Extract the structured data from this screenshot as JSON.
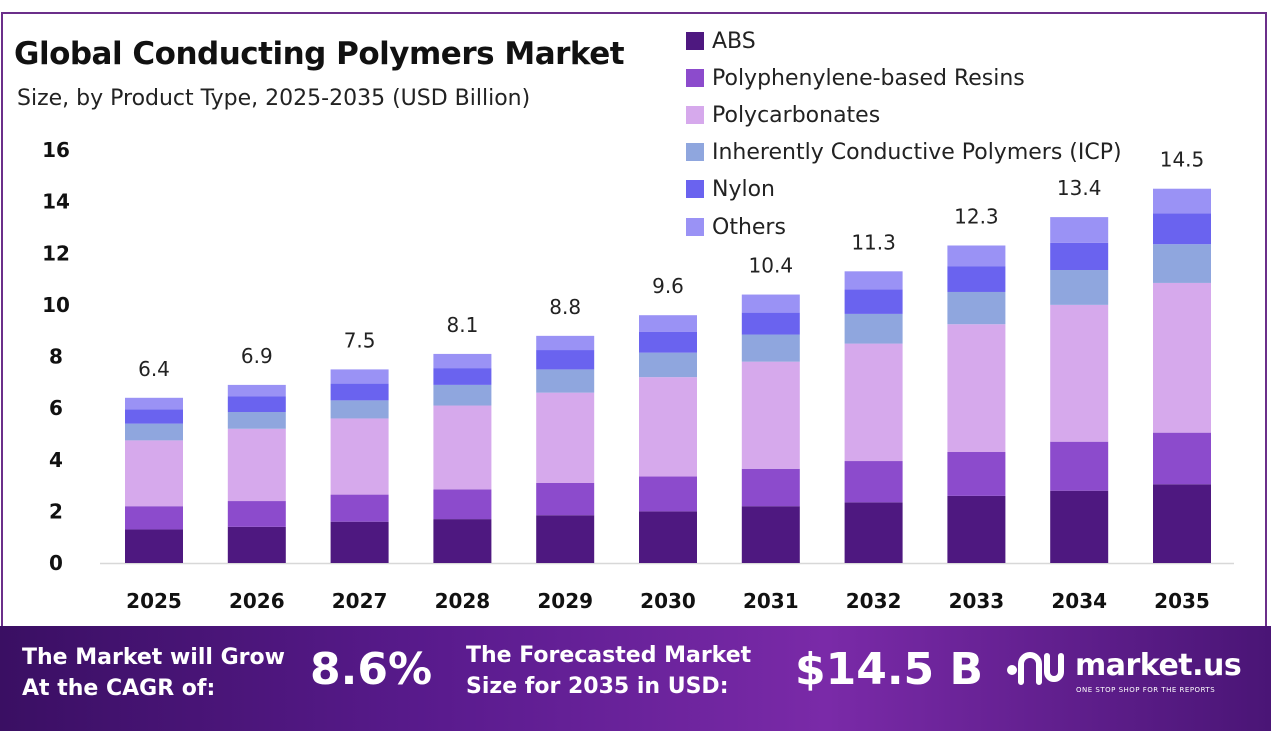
{
  "title": "Global Conducting Polymers Market",
  "subtitle": "Size, by Product Type, 2025-2035 (USD Billion)",
  "legend": [
    {
      "label": "ABS",
      "color": "#4e1880"
    },
    {
      "label": "Polyphenylene-based Resins",
      "color": "#8c4bcc"
    },
    {
      "label": "Polycarbonates",
      "color": "#d6a9ec"
    },
    {
      "label": "Inherently Conductive Polymers (ICP)",
      "color": "#8fa6de"
    },
    {
      "label": "Nylon",
      "color": "#6a63ef"
    },
    {
      "label": "Others",
      "color": "#9a92f5"
    }
  ],
  "chart_data": {
    "type": "bar",
    "stacked": true,
    "categories": [
      "2025",
      "2026",
      "2027",
      "2028",
      "2029",
      "2030",
      "2031",
      "2032",
      "2033",
      "2034",
      "2035"
    ],
    "totals": [
      "6.4",
      "6.9",
      "7.5",
      "8.1",
      "8.8",
      "9.6",
      "10.4",
      "11.3",
      "12.3",
      "13.4",
      "14.5"
    ],
    "series": [
      {
        "name": "ABS",
        "values": [
          1.3,
          1.4,
          1.6,
          1.7,
          1.85,
          2.0,
          2.2,
          2.35,
          2.6,
          2.8,
          3.05
        ]
      },
      {
        "name": "Polyphenylene-based Resins",
        "values": [
          0.9,
          1.0,
          1.05,
          1.15,
          1.25,
          1.35,
          1.45,
          1.6,
          1.7,
          1.9,
          2.0
        ]
      },
      {
        "name": "Polycarbonates",
        "values": [
          2.55,
          2.8,
          2.95,
          3.25,
          3.5,
          3.85,
          4.15,
          4.55,
          4.95,
          5.3,
          5.8
        ]
      },
      {
        "name": "Inherently Conductive Polymers (ICP)",
        "values": [
          0.65,
          0.65,
          0.7,
          0.8,
          0.9,
          0.95,
          1.05,
          1.15,
          1.25,
          1.35,
          1.5
        ]
      },
      {
        "name": "Nylon",
        "values": [
          0.55,
          0.6,
          0.65,
          0.65,
          0.75,
          0.8,
          0.85,
          0.95,
          1.0,
          1.05,
          1.2
        ]
      },
      {
        "name": "Others",
        "values": [
          0.45,
          0.45,
          0.55,
          0.55,
          0.55,
          0.65,
          0.7,
          0.7,
          0.8,
          1.0,
          0.95
        ]
      }
    ],
    "ylim": [
      0,
      16
    ],
    "yticks": [
      "0",
      "2",
      "4",
      "6",
      "8",
      "10",
      "12",
      "14",
      "16"
    ],
    "grid": false,
    "legend_position": "top-right"
  },
  "footer": {
    "cagr_label_line1": "The Market will Grow",
    "cagr_label_line2": "At the CAGR of:",
    "cagr_value": "8.6%",
    "forecast_label_line1": "The Forecasted Market",
    "forecast_label_line2": "Size for 2035 in USD:",
    "forecast_value": "$14.5 B",
    "brand_name": "market.us",
    "brand_tagline": "ONE STOP SHOP FOR THE REPORTS"
  }
}
